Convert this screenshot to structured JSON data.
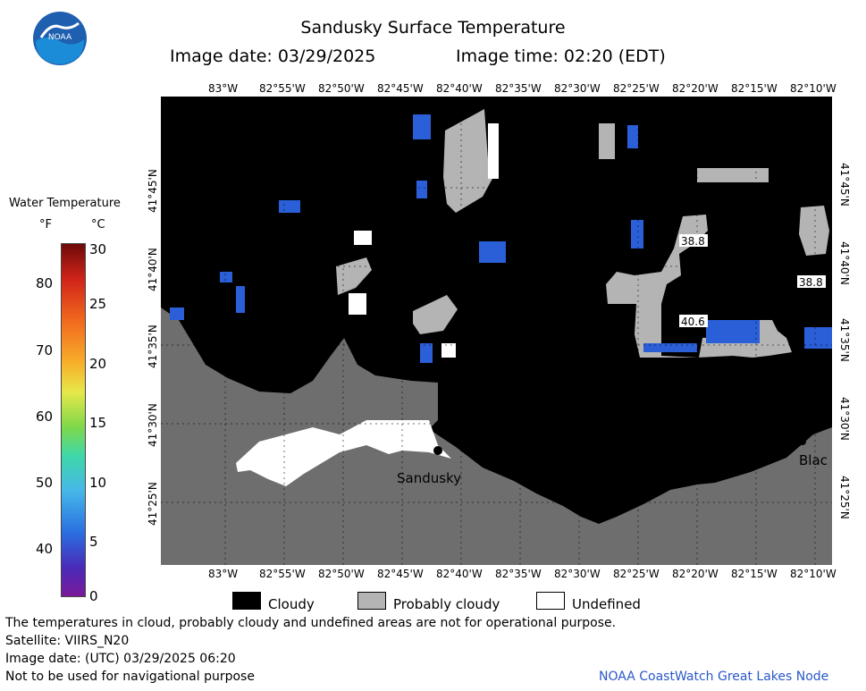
{
  "header": {
    "title": "Sandusky Surface Temperature",
    "image_date": "Image date: 03/29/2025",
    "image_time": "Image time: 02:20 (EDT)",
    "logo_text": "NOAA"
  },
  "map": {
    "lon_ticks": [
      "83°W",
      "82°55'W",
      "82°50'W",
      "82°45'W",
      "82°40'W",
      "82°35'W",
      "82°30'W",
      "82°25'W",
      "82°20'W",
      "82°15'W",
      "82°10'W"
    ],
    "lat_ticks": [
      "41°45'N",
      "41°40'N",
      "41°35'N",
      "41°30'N",
      "41°25'N"
    ],
    "city_labels": {
      "sandusky": "Sandusky",
      "bay": "Blac"
    },
    "temp_labels": [
      "38.8",
      "38.8",
      "40.6"
    ]
  },
  "scale": {
    "title": "Water Temperature",
    "unit_f": "°F",
    "unit_c": "°C",
    "f_ticks": [
      "80",
      "70",
      "60",
      "50",
      "40"
    ],
    "c_ticks": [
      "30",
      "25",
      "20",
      "15",
      "10",
      "5",
      "0"
    ]
  },
  "legend": {
    "cloudy": "Cloudy",
    "probably_cloudy": "Probably cloudy",
    "undefined": "Undefined"
  },
  "footer": {
    "disclaimer": "The temperatures in cloud, probably cloudy and undefined areas are not for operational purpose.",
    "satellite": "Satellite: VIIRS_N20",
    "utc_date": "Image date: (UTC) 03/29/2025  06:20",
    "nav_warning": "Not to be used for navigational purpose",
    "credit": "NOAA CoastWatch Great Lakes Node"
  },
  "colors": {
    "land": "#6e6e6e",
    "cloudy": "#000000",
    "probably_cloudy": "#b4b4b4",
    "undefined": "#ffffff",
    "water_cold": "#2a5fd8",
    "credit_text": "#2a58c8"
  }
}
